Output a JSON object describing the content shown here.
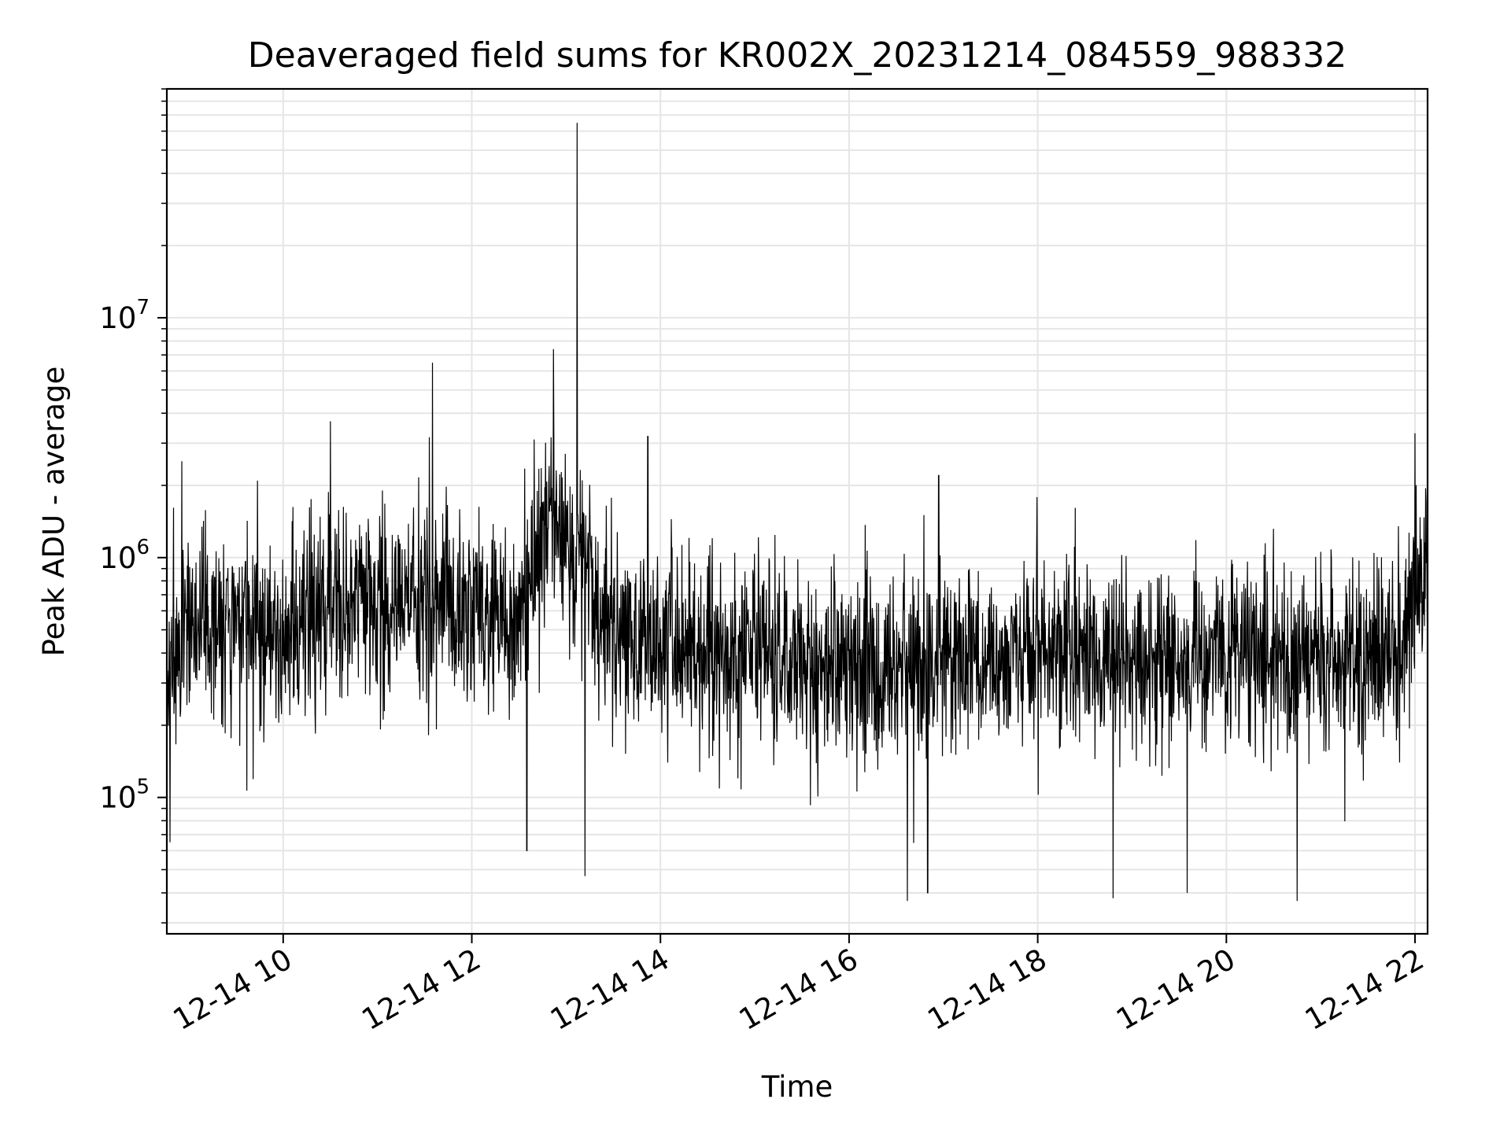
{
  "chart_data": {
    "type": "line",
    "title": "Deaveraged field sums for KR002X_20231214_084559_988332",
    "xlabel": "Time",
    "ylabel": "Peak ADU - average",
    "x_type": "datetime",
    "xlim": [
      "2023-12-14 08:46",
      "2023-12-14 22:08"
    ],
    "x_ticks": [
      {
        "value": "2023-12-14 10:00",
        "label": "12-14 10"
      },
      {
        "value": "2023-12-14 12:00",
        "label": "12-14 12"
      },
      {
        "value": "2023-12-14 14:00",
        "label": "12-14 14"
      },
      {
        "value": "2023-12-14 16:00",
        "label": "12-14 16"
      },
      {
        "value": "2023-12-14 18:00",
        "label": "12-14 18"
      },
      {
        "value": "2023-12-14 20:00",
        "label": "12-14 20"
      },
      {
        "value": "2023-12-14 22:00",
        "label": "12-14 22"
      }
    ],
    "y_scale": "log",
    "ylim": [
      27000,
      90000000
    ],
    "y_ticks": [
      {
        "value": 100000,
        "base": "10",
        "exp": "5"
      },
      {
        "value": 1000000,
        "base": "10",
        "exp": "6"
      },
      {
        "value": 10000000,
        "base": "10",
        "exp": "7"
      }
    ],
    "grid": true,
    "line_color": "#000000",
    "grid_color": "#e5e5e5",
    "series": [
      {
        "x": [
          "2023-12-14 08:46",
          "2023-12-14 09:00",
          "2023-12-14 09:30",
          "2023-12-14 10:00",
          "2023-12-14 10:30",
          "2023-12-14 11:00",
          "2023-12-14 11:30",
          "2023-12-14 12:00",
          "2023-12-14 12:30",
          "2023-12-14 12:50",
          "2023-12-14 13:00",
          "2023-12-14 13:30",
          "2023-12-14 14:00",
          "2023-12-14 15:00",
          "2023-12-14 16:00",
          "2023-12-14 17:00",
          "2023-12-14 18:00",
          "2023-12-14 19:00",
          "2023-12-14 20:00",
          "2023-12-14 21:00",
          "2023-12-14 21:50",
          "2023-12-14 22:08"
        ],
        "y": [
          300000,
          550000,
          520000,
          480000,
          650000,
          620000,
          700000,
          600000,
          560000,
          1500000,
          1200000,
          480000,
          420000,
          380000,
          360000,
          380000,
          380000,
          370000,
          380000,
          380000,
          380000,
          900000
        ]
      }
    ],
    "spikes": [
      {
        "x": "2023-12-14 10:30",
        "y": 3700000
      },
      {
        "x": "2023-12-14 11:35",
        "y": 6500000
      },
      {
        "x": "2023-12-14 12:52",
        "y": 7400000
      },
      {
        "x": "2023-12-14 13:07",
        "y": 65000000
      },
      {
        "x": "2023-12-14 13:52",
        "y": 3200000
      },
      {
        "x": "2023-12-14 16:57",
        "y": 2200000
      },
      {
        "x": "2023-12-14 22:00",
        "y": 3300000
      }
    ],
    "dips": [
      {
        "x": "2023-12-14 08:48",
        "y": 65000
      },
      {
        "x": "2023-12-14 12:35",
        "y": 60000
      },
      {
        "x": "2023-12-14 13:12",
        "y": 47000
      },
      {
        "x": "2023-12-14 16:37",
        "y": 37000
      },
      {
        "x": "2023-12-14 16:50",
        "y": 40000
      },
      {
        "x": "2023-12-14 18:48",
        "y": 38000
      },
      {
        "x": "2023-12-14 19:35",
        "y": 40000
      },
      {
        "x": "2023-12-14 20:45",
        "y": 37000
      }
    ]
  }
}
